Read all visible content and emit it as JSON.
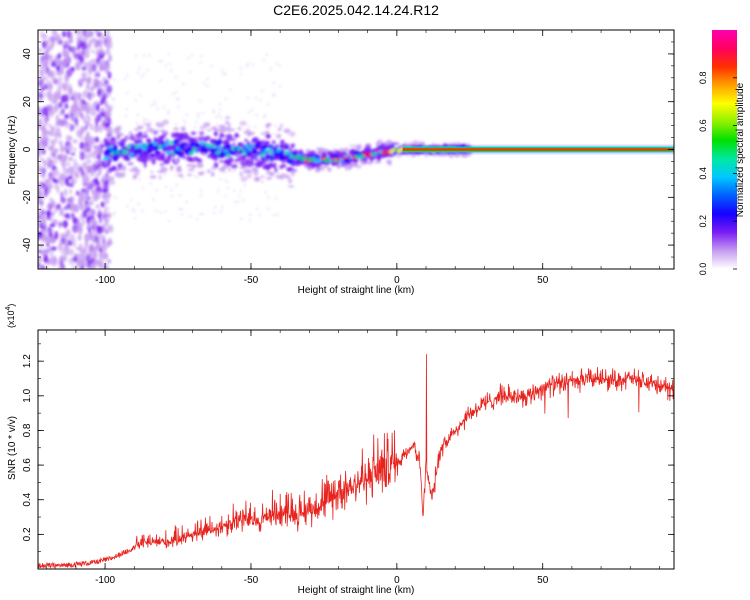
{
  "title": "C2E6.2025.042.14.24.R12",
  "chart_data": [
    {
      "type": "heatmap",
      "xlabel": "Height of straight line (km)",
      "ylabel": "Frequency (Hz)",
      "xlim": [
        -123,
        95
      ],
      "ylim": [
        -50,
        50
      ],
      "xticks": [
        -100,
        -50,
        0,
        50
      ],
      "yticks": [
        -40,
        -20,
        0,
        20,
        40
      ],
      "colorbar": {
        "label": "Normalized spectral amplitude",
        "range": [
          0,
          1
        ],
        "ticks": [
          "0.0",
          "0.2",
          "0.4",
          "0.6",
          "0.8"
        ],
        "colors": [
          "#ffffff",
          "#c59cf0",
          "#7a1cf5",
          "#1500ff",
          "#0060ff",
          "#00c8ff",
          "#00e8a0",
          "#00e000",
          "#90f000",
          "#ffff00",
          "#ffa000",
          "#ff3000",
          "#ff0060",
          "#ff00b0"
        ]
      },
      "ridge": [
        {
          "x": -110,
          "y": -4
        },
        {
          "x": -90,
          "y": 0
        },
        {
          "x": -75,
          "y": 1
        },
        {
          "x": -60,
          "y": 0
        },
        {
          "x": -45,
          "y": -1
        },
        {
          "x": -35,
          "y": -3
        },
        {
          "x": -30,
          "y": -4.5
        },
        {
          "x": -20,
          "y": -4
        },
        {
          "x": -15,
          "y": -3
        },
        {
          "x": -10,
          "y": -2
        },
        {
          "x": -5,
          "y": -1
        },
        {
          "x": 0,
          "y": 0
        },
        {
          "x": 10,
          "y": 0
        },
        {
          "x": 20,
          "y": 0
        },
        {
          "x": 93,
          "y": 0
        }
      ]
    },
    {
      "type": "line",
      "xlabel": "Height of straight line (km)",
      "ylabel": "SNR (10 * v/v)",
      "yscale_note": "(x10",
      "yscale_exp": "4",
      "xlim": [
        -123,
        95
      ],
      "ylim": [
        0,
        1.38
      ],
      "xticks": [
        -100,
        -50,
        0,
        50
      ],
      "yticks": [
        "0.2",
        "0.4",
        "0.6",
        "0.8",
        "1.0",
        "1.2"
      ],
      "color": "#e8231e",
      "series": [
        {
          "x": [
            -123,
            -115,
            -108,
            -103,
            -98,
            -93,
            -88,
            -83,
            -78,
            -73,
            -68,
            -63,
            -58,
            -53,
            -48,
            -43,
            -38,
            -33,
            -28,
            -23,
            -18,
            -13,
            -8,
            -3,
            0,
            3,
            6,
            8,
            9,
            10,
            11,
            12,
            15,
            20,
            25,
            30,
            35,
            40,
            45,
            50,
            55,
            60,
            65,
            70,
            75,
            80,
            85,
            90,
            94
          ],
          "y": [
            0.02,
            0.02,
            0.03,
            0.04,
            0.06,
            0.1,
            0.14,
            0.15,
            0.15,
            0.18,
            0.2,
            0.22,
            0.25,
            0.28,
            0.26,
            0.3,
            0.32,
            0.3,
            0.35,
            0.38,
            0.45,
            0.48,
            0.52,
            0.56,
            0.6,
            0.68,
            0.72,
            0.6,
            0.3,
            0.6,
            0.5,
            0.4,
            0.7,
            0.8,
            0.9,
            0.95,
            1.0,
            1.0,
            1.0,
            1.05,
            1.07,
            1.08,
            1.1,
            1.1,
            1.09,
            1.1,
            1.08,
            1.06,
            1.04
          ]
        }
      ]
    }
  ]
}
